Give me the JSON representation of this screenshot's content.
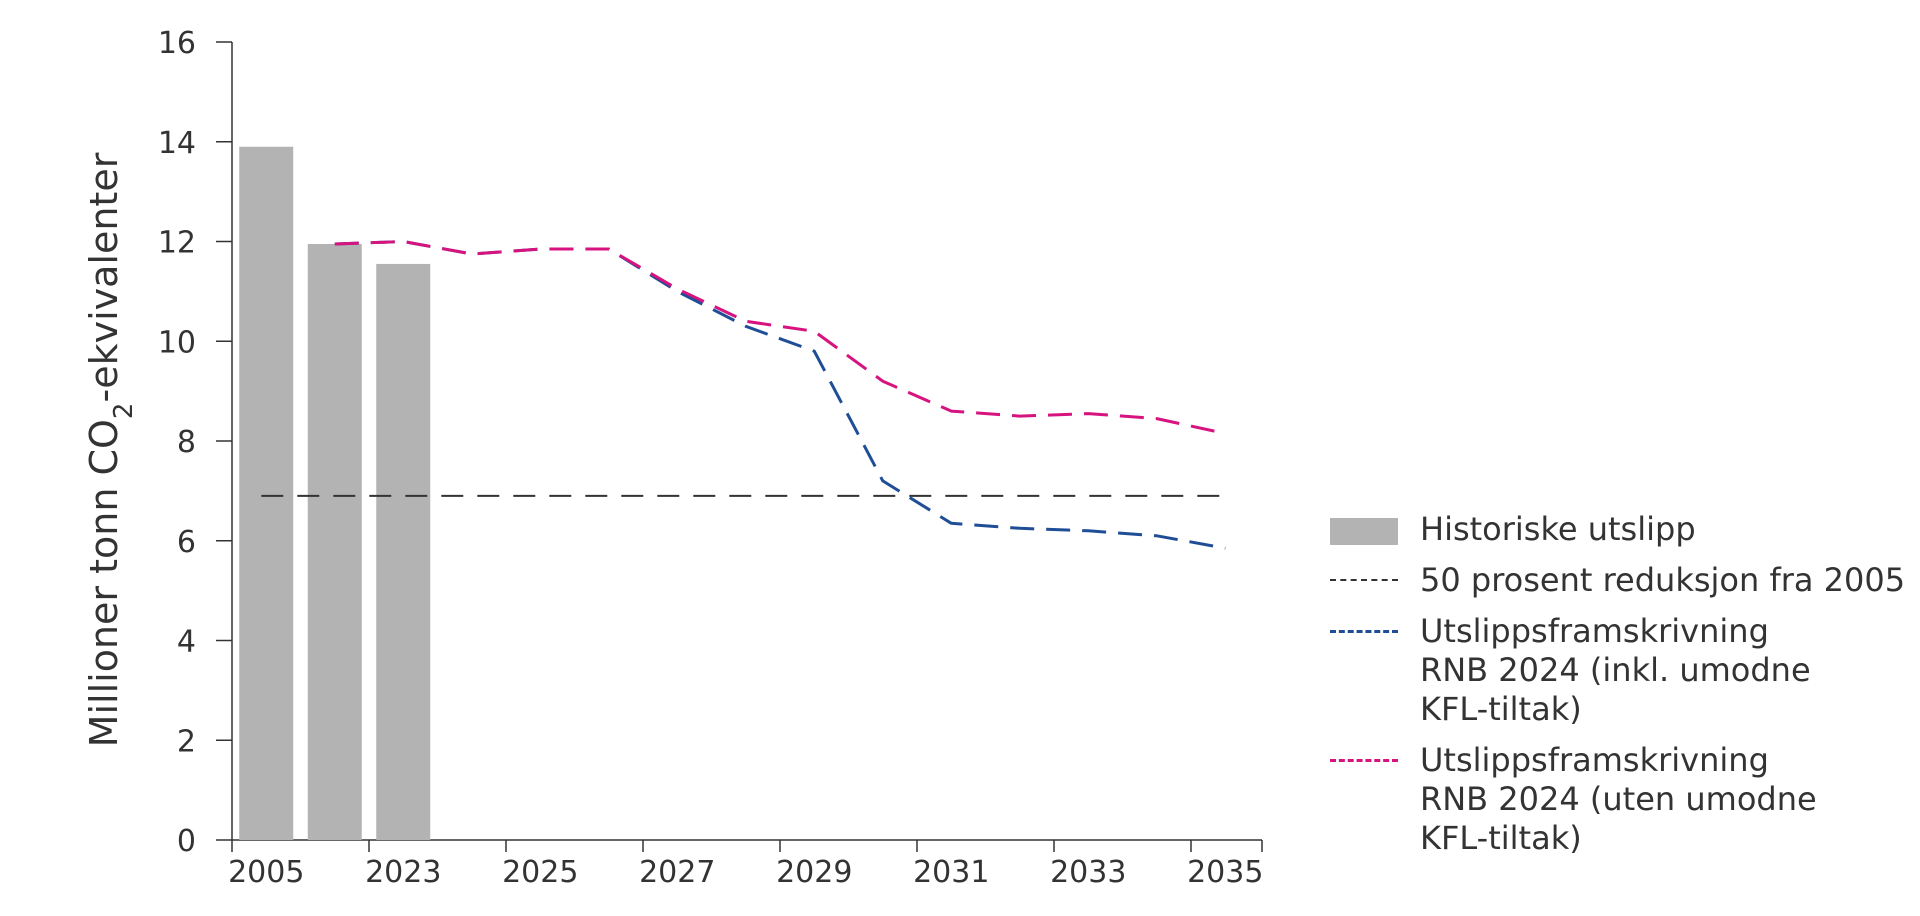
{
  "chart_data": {
    "type": "bar",
    "title": "",
    "ylabel": "Millioner tonn CO2-ekvivalenter",
    "ylabel_parts": {
      "pre": "Millioner tonn CO",
      "sub": "2",
      "post": "-ekvivalenter"
    },
    "ylim": [
      0,
      16
    ],
    "yticks": [
      "0",
      "2",
      "4",
      "6",
      "8",
      "10",
      "12",
      "14",
      "16"
    ],
    "xticks": [
      "2005",
      "2023",
      "2025",
      "2027",
      "2029",
      "2031",
      "2033",
      "2035"
    ],
    "categories": [
      "2005",
      "2022",
      "2023",
      "2024",
      "2025",
      "2026",
      "2027",
      "2028",
      "2029",
      "2030",
      "2031",
      "2032",
      "2033",
      "2034",
      "2035"
    ],
    "grid": false,
    "legend_position": "right",
    "series": [
      {
        "name": "Historiske utslipp",
        "kind": "bar",
        "color": "#b3b3b3",
        "x": [
          "2005",
          "2022",
          "2023"
        ],
        "values": [
          13.9,
          11.95,
          11.55
        ]
      },
      {
        "name": "50 prosent reduksjon fra 2005",
        "kind": "dashed-line",
        "color": "#333333",
        "x": [
          "2005",
          "2035"
        ],
        "values": [
          6.9,
          6.9
        ]
      },
      {
        "name": "Utslippsframskrivning\nRNB 2024 (inkl. umodne\nKFL-tiltak)",
        "kind": "dashed-line",
        "color": "#1f4e96",
        "x": [
          "2022",
          "2023",
          "2024",
          "2025",
          "2026",
          "2027",
          "2028",
          "2029",
          "2030",
          "2031",
          "2032",
          "2033",
          "2034",
          "2035"
        ],
        "values": [
          11.95,
          12.0,
          11.75,
          11.85,
          11.85,
          11.0,
          10.3,
          9.8,
          7.2,
          6.35,
          6.25,
          6.2,
          6.1,
          5.85
        ]
      },
      {
        "name": "Utslippsframskrivning\nRNB 2024 (uten umodne\nKFL-tiltak)",
        "kind": "dashed-line",
        "color": "#d6137f",
        "x": [
          "2022",
          "2023",
          "2024",
          "2025",
          "2026",
          "2027",
          "2028",
          "2029",
          "2030",
          "2031",
          "2032",
          "2033",
          "2034",
          "2035"
        ],
        "values": [
          11.95,
          12.0,
          11.75,
          11.85,
          11.85,
          11.05,
          10.4,
          10.2,
          9.2,
          8.6,
          8.5,
          8.55,
          8.45,
          8.15
        ]
      }
    ]
  }
}
